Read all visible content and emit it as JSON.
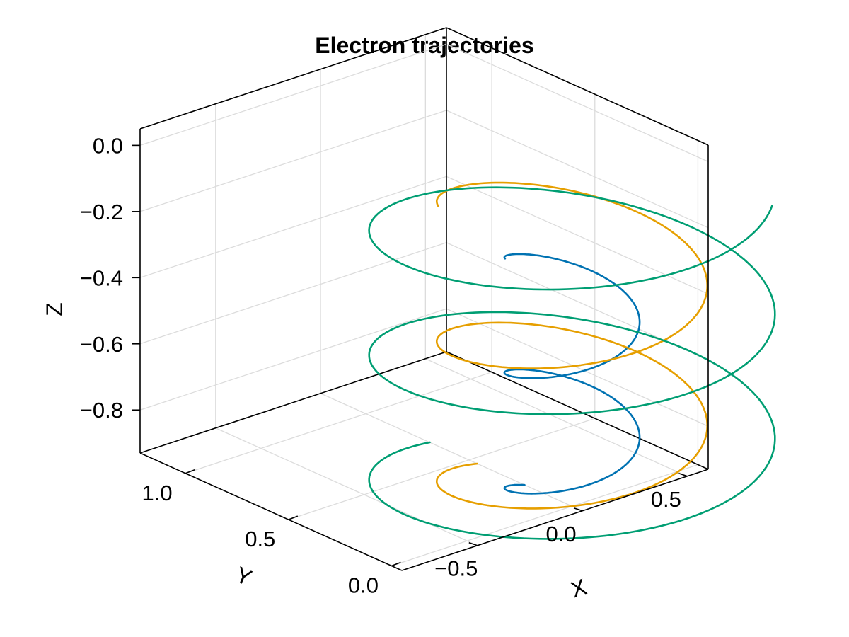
{
  "chart_data": {
    "type": "line",
    "title": "Electron trajectories",
    "xlabel": "X",
    "ylabel": "Y",
    "zlabel": "Z",
    "xlim": [
      -0.86,
      0.6
    ],
    "ylim": [
      -0.05,
      1.22
    ],
    "zlim": [
      -0.93,
      0.05
    ],
    "x_ticks": [
      -0.5,
      0.0,
      0.5
    ],
    "x_tick_labels": [
      "−0.5",
      "0.0",
      "0.5"
    ],
    "y_ticks": [
      0.0,
      0.5,
      1.0
    ],
    "y_tick_labels": [
      "0.0",
      "0.5",
      "1.0"
    ],
    "z_ticks": [
      -0.8,
      -0.6,
      -0.4,
      -0.2,
      0.0
    ],
    "z_tick_labels": [
      "−0.8",
      "−0.6",
      "−0.4",
      "−0.2",
      "0.0"
    ],
    "grid": true,
    "series": [
      {
        "color": "#0072b2",
        "center_x": 0.0,
        "center_y": 0.0,
        "radius": 0.23,
        "z_start": -0.93,
        "z_end": -0.18,
        "turns": 2.15
      },
      {
        "color": "#e69f00",
        "center_x": 0.0,
        "center_y": 0.0,
        "radius": 0.46,
        "z_start": -0.93,
        "z_end": -0.02,
        "turns": 2.15
      },
      {
        "color": "#009e73",
        "center_x": 0.0,
        "center_y": 0.0,
        "radius": 0.69,
        "z_start": -0.93,
        "z_end": 0.05,
        "turns": 2.6
      }
    ]
  }
}
